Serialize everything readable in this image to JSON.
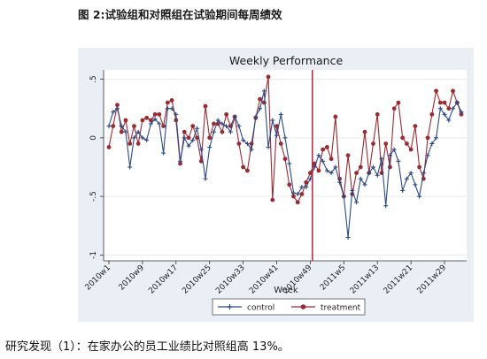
{
  "caption": "图 2:试验组和对照组在试验期间每周绩效",
  "body_text": "研究发现（1）：在家办公的员工业绩比对照组高 13%。",
  "colors": {
    "control": "#2a4a86",
    "treatment": "#9b2a32",
    "divider": "#c0203a",
    "plot_bg": "#ffffff",
    "panel_bg": "#e9eff4"
  },
  "chart_data": {
    "type": "line",
    "title": "Weekly Performance",
    "xlabel": "Week",
    "ylabel": "",
    "ylim": [
      -1.05,
      0.58
    ],
    "y_ticks": [
      -1,
      -0.5,
      0,
      0.5
    ],
    "y_tick_labels": [
      "-1",
      "-.5",
      "0",
      ".5"
    ],
    "x_tick_labels": [
      "2010w1",
      "2010w9",
      "2010w17",
      "2010w25",
      "2010w33",
      "2010w41",
      "2010w49",
      "2011w5",
      "2011w13",
      "2011w21",
      "2011w29"
    ],
    "x_tick_positions": [
      0,
      8,
      16,
      24,
      32,
      40,
      48,
      56,
      64,
      72,
      80
    ],
    "divider_at": 48.5,
    "grid": true,
    "legend_position": "bottom",
    "series": [
      {
        "name": "control",
        "marker": "plus",
        "values": [
          0.1,
          0.22,
          0.25,
          0.1,
          0.05,
          -0.25,
          0.0,
          0.05,
          0.0,
          -0.02,
          0.12,
          0.16,
          0.12,
          -0.13,
          0.25,
          0.25,
          0.2,
          -0.2,
          0.0,
          -0.07,
          -0.02,
          0.08,
          -0.1,
          -0.35,
          -0.08,
          0.05,
          0.15,
          0.12,
          0.1,
          0.05,
          0.18,
          0.1,
          -0.02,
          -0.05,
          -0.1,
          0.18,
          0.25,
          0.4,
          -0.08,
          0.15,
          0.02,
          0.2,
          0.0,
          -0.22,
          -0.47,
          -0.48,
          -0.42,
          -0.42,
          -0.35,
          -0.25,
          -0.15,
          -0.2,
          -0.28,
          -0.3,
          -0.25,
          -0.38,
          -0.5,
          -0.85,
          -0.45,
          -0.55,
          -0.35,
          -0.4,
          -0.3,
          -0.25,
          -0.32,
          -0.18,
          -0.58,
          -0.15,
          -0.1,
          -0.2,
          -0.45,
          -0.35,
          -0.3,
          -0.4,
          -0.5,
          -0.3,
          -0.15,
          -0.05,
          0.0,
          0.25,
          0.2,
          0.15,
          0.25,
          0.3,
          0.22
        ]
      },
      {
        "name": "treatment",
        "marker": "circle",
        "values": [
          -0.08,
          0.1,
          0.28,
          0.05,
          0.15,
          -0.05,
          0.1,
          -0.05,
          0.15,
          0.17,
          0.15,
          0.2,
          0.2,
          0.1,
          0.3,
          0.32,
          0.15,
          -0.22,
          0.05,
          0.0,
          0.1,
          0.0,
          -0.2,
          0.27,
          0.0,
          0.12,
          0.12,
          0.05,
          0.2,
          0.1,
          0.18,
          -0.05,
          -0.25,
          -0.28,
          -0.05,
          0.17,
          0.33,
          0.3,
          0.52,
          -0.53,
          0.1,
          -0.05,
          -0.18,
          -0.4,
          -0.5,
          -0.55,
          -0.48,
          -0.38,
          -0.3,
          -0.22,
          -0.28,
          -0.1,
          -0.08,
          -0.18,
          0.18,
          -0.35,
          -0.5,
          -0.15,
          -0.48,
          -0.3,
          -0.25,
          0.05,
          -0.3,
          -0.05,
          0.2,
          -0.3,
          -0.05,
          -0.25,
          0.25,
          0.3,
          0.0,
          -0.05,
          -0.1,
          0.1,
          -0.25,
          -0.35,
          0.0,
          0.2,
          0.4,
          0.3,
          0.3,
          0.25,
          0.4,
          0.3,
          0.2
        ]
      }
    ]
  }
}
